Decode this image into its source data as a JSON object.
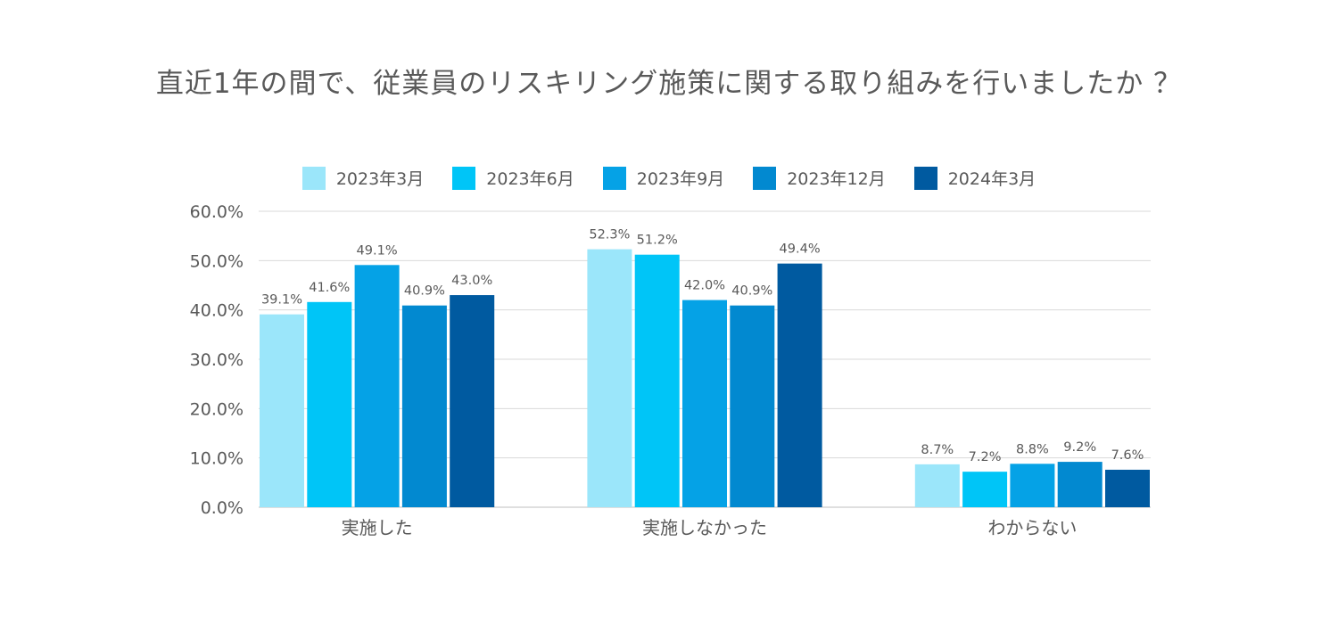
{
  "title": "直近1年の間で、従業員のリスキリング施策に関する取り組みを行いましたか ？",
  "chart_data": {
    "type": "bar",
    "title": "直近1年の間で、従業員のリスキリング施策に関する取り組みを行いましたか ？",
    "categories": [
      "実施した",
      "実施しなかった",
      "わからない"
    ],
    "series": [
      {
        "name": "2023年3月",
        "color": "#9be6fa",
        "values": [
          39.1,
          52.3,
          8.7
        ]
      },
      {
        "name": "2023年6月",
        "color": "#00c5f7",
        "values": [
          41.6,
          51.2,
          7.2
        ]
      },
      {
        "name": "2023年9月",
        "color": "#05a2e6",
        "values": [
          49.1,
          42.0,
          8.8
        ]
      },
      {
        "name": "2023年12月",
        "color": "#0289d0",
        "values": [
          40.9,
          40.9,
          9.2
        ]
      },
      {
        "name": "2024年3月",
        "color": "#005aa0",
        "values": [
          43.0,
          49.4,
          7.6
        ]
      }
    ],
    "data_labels": [
      [
        "39.1%",
        "52.3%",
        "8.7%"
      ],
      [
        "41.6%",
        "51.2%",
        "7.2%"
      ],
      [
        "49.1%",
        "42.0%",
        "8.8%"
      ],
      [
        "40.9%",
        "40.9%",
        "9.2%"
      ],
      [
        "43.0%",
        "49.4%",
        "7.6%"
      ]
    ],
    "y_ticks": [
      "0.0%",
      "10.0%",
      "20.0%",
      "30.0%",
      "40.0%",
      "50.0%",
      "60.0%"
    ],
    "ylim": [
      0,
      60
    ],
    "xlabel": "",
    "ylabel": "",
    "grid": true,
    "legend_position": "top-center"
  }
}
